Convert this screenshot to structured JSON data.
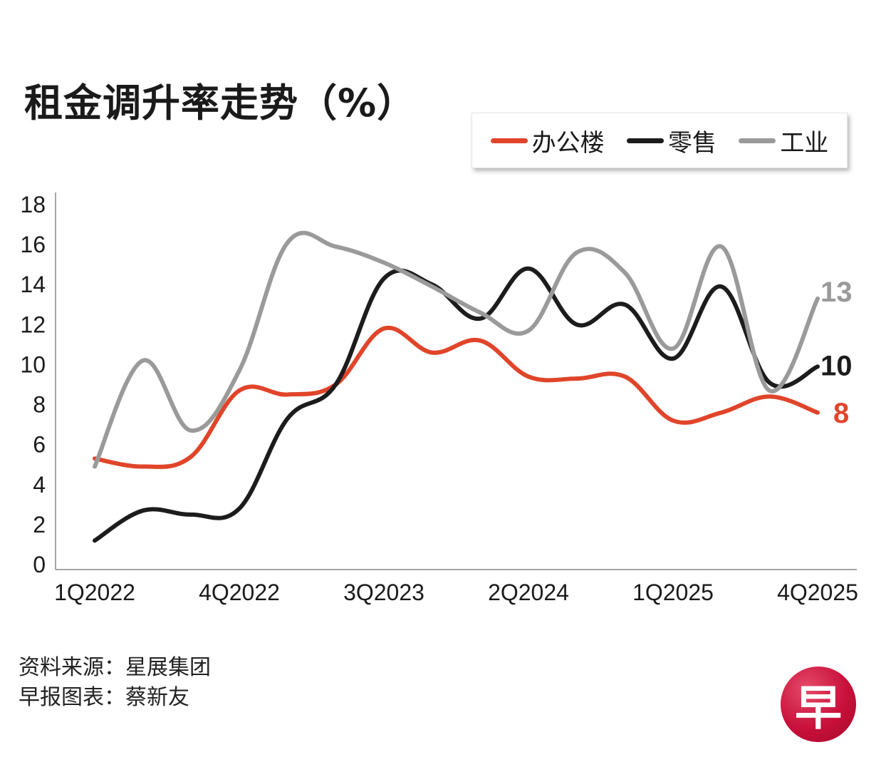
{
  "title": "租金调升率走势（%）",
  "legend": {
    "items": [
      {
        "label": "办公楼",
        "color": "#e0452a"
      },
      {
        "label": "零售",
        "color": "#1c1c1c"
      },
      {
        "label": "工业",
        "color": "#9a9a9a"
      }
    ]
  },
  "source": {
    "line1": "资料来源：星展集团",
    "line2": "早报图表：蔡新友"
  },
  "logo": {
    "text": "早",
    "color": "#c8103a"
  },
  "chart_data": {
    "type": "line",
    "title": "租金调升率走势（%）",
    "xlabel": "",
    "ylabel": "",
    "ylim": [
      0,
      18
    ],
    "yticks": [
      0,
      2,
      4,
      6,
      8,
      10,
      12,
      14,
      16,
      18
    ],
    "x": [
      "1Q2022",
      "2Q2022",
      "3Q2022",
      "4Q2022",
      "1Q2023",
      "2Q2023",
      "3Q2023",
      "4Q2023",
      "1Q2024",
      "2Q2024",
      "3Q2024",
      "4Q2024",
      "1Q2025",
      "2Q2025",
      "3Q2025",
      "4Q2025"
    ],
    "xtick_labels": [
      "1Q2022",
      "4Q2022",
      "3Q2023",
      "2Q2024",
      "1Q2025",
      "4Q2025"
    ],
    "grid": false,
    "legend_position": "top-right",
    "series": [
      {
        "name": "办公楼",
        "color": "#e0452a",
        "values": [
          5.3,
          4.9,
          5.4,
          8.7,
          8.5,
          9.0,
          11.8,
          10.6,
          11.2,
          9.4,
          9.3,
          9.4,
          7.2,
          7.6,
          8.4,
          7.6
        ],
        "end_label": "8"
      },
      {
        "name": "零售",
        "color": "#1c1c1c",
        "values": [
          1.2,
          2.7,
          2.5,
          2.8,
          7.3,
          9.0,
          14.3,
          14.0,
          12.3,
          14.8,
          12.0,
          13.0,
          10.3,
          13.9,
          9.1,
          9.9
        ],
        "end_label": "10"
      },
      {
        "name": "工业",
        "color": "#9a9a9a",
        "values": [
          4.9,
          10.2,
          6.7,
          9.7,
          16.1,
          15.9,
          15.1,
          13.9,
          12.6,
          11.7,
          15.6,
          14.6,
          10.8,
          15.9,
          8.7,
          13.3
        ],
        "end_label": "13"
      }
    ]
  }
}
